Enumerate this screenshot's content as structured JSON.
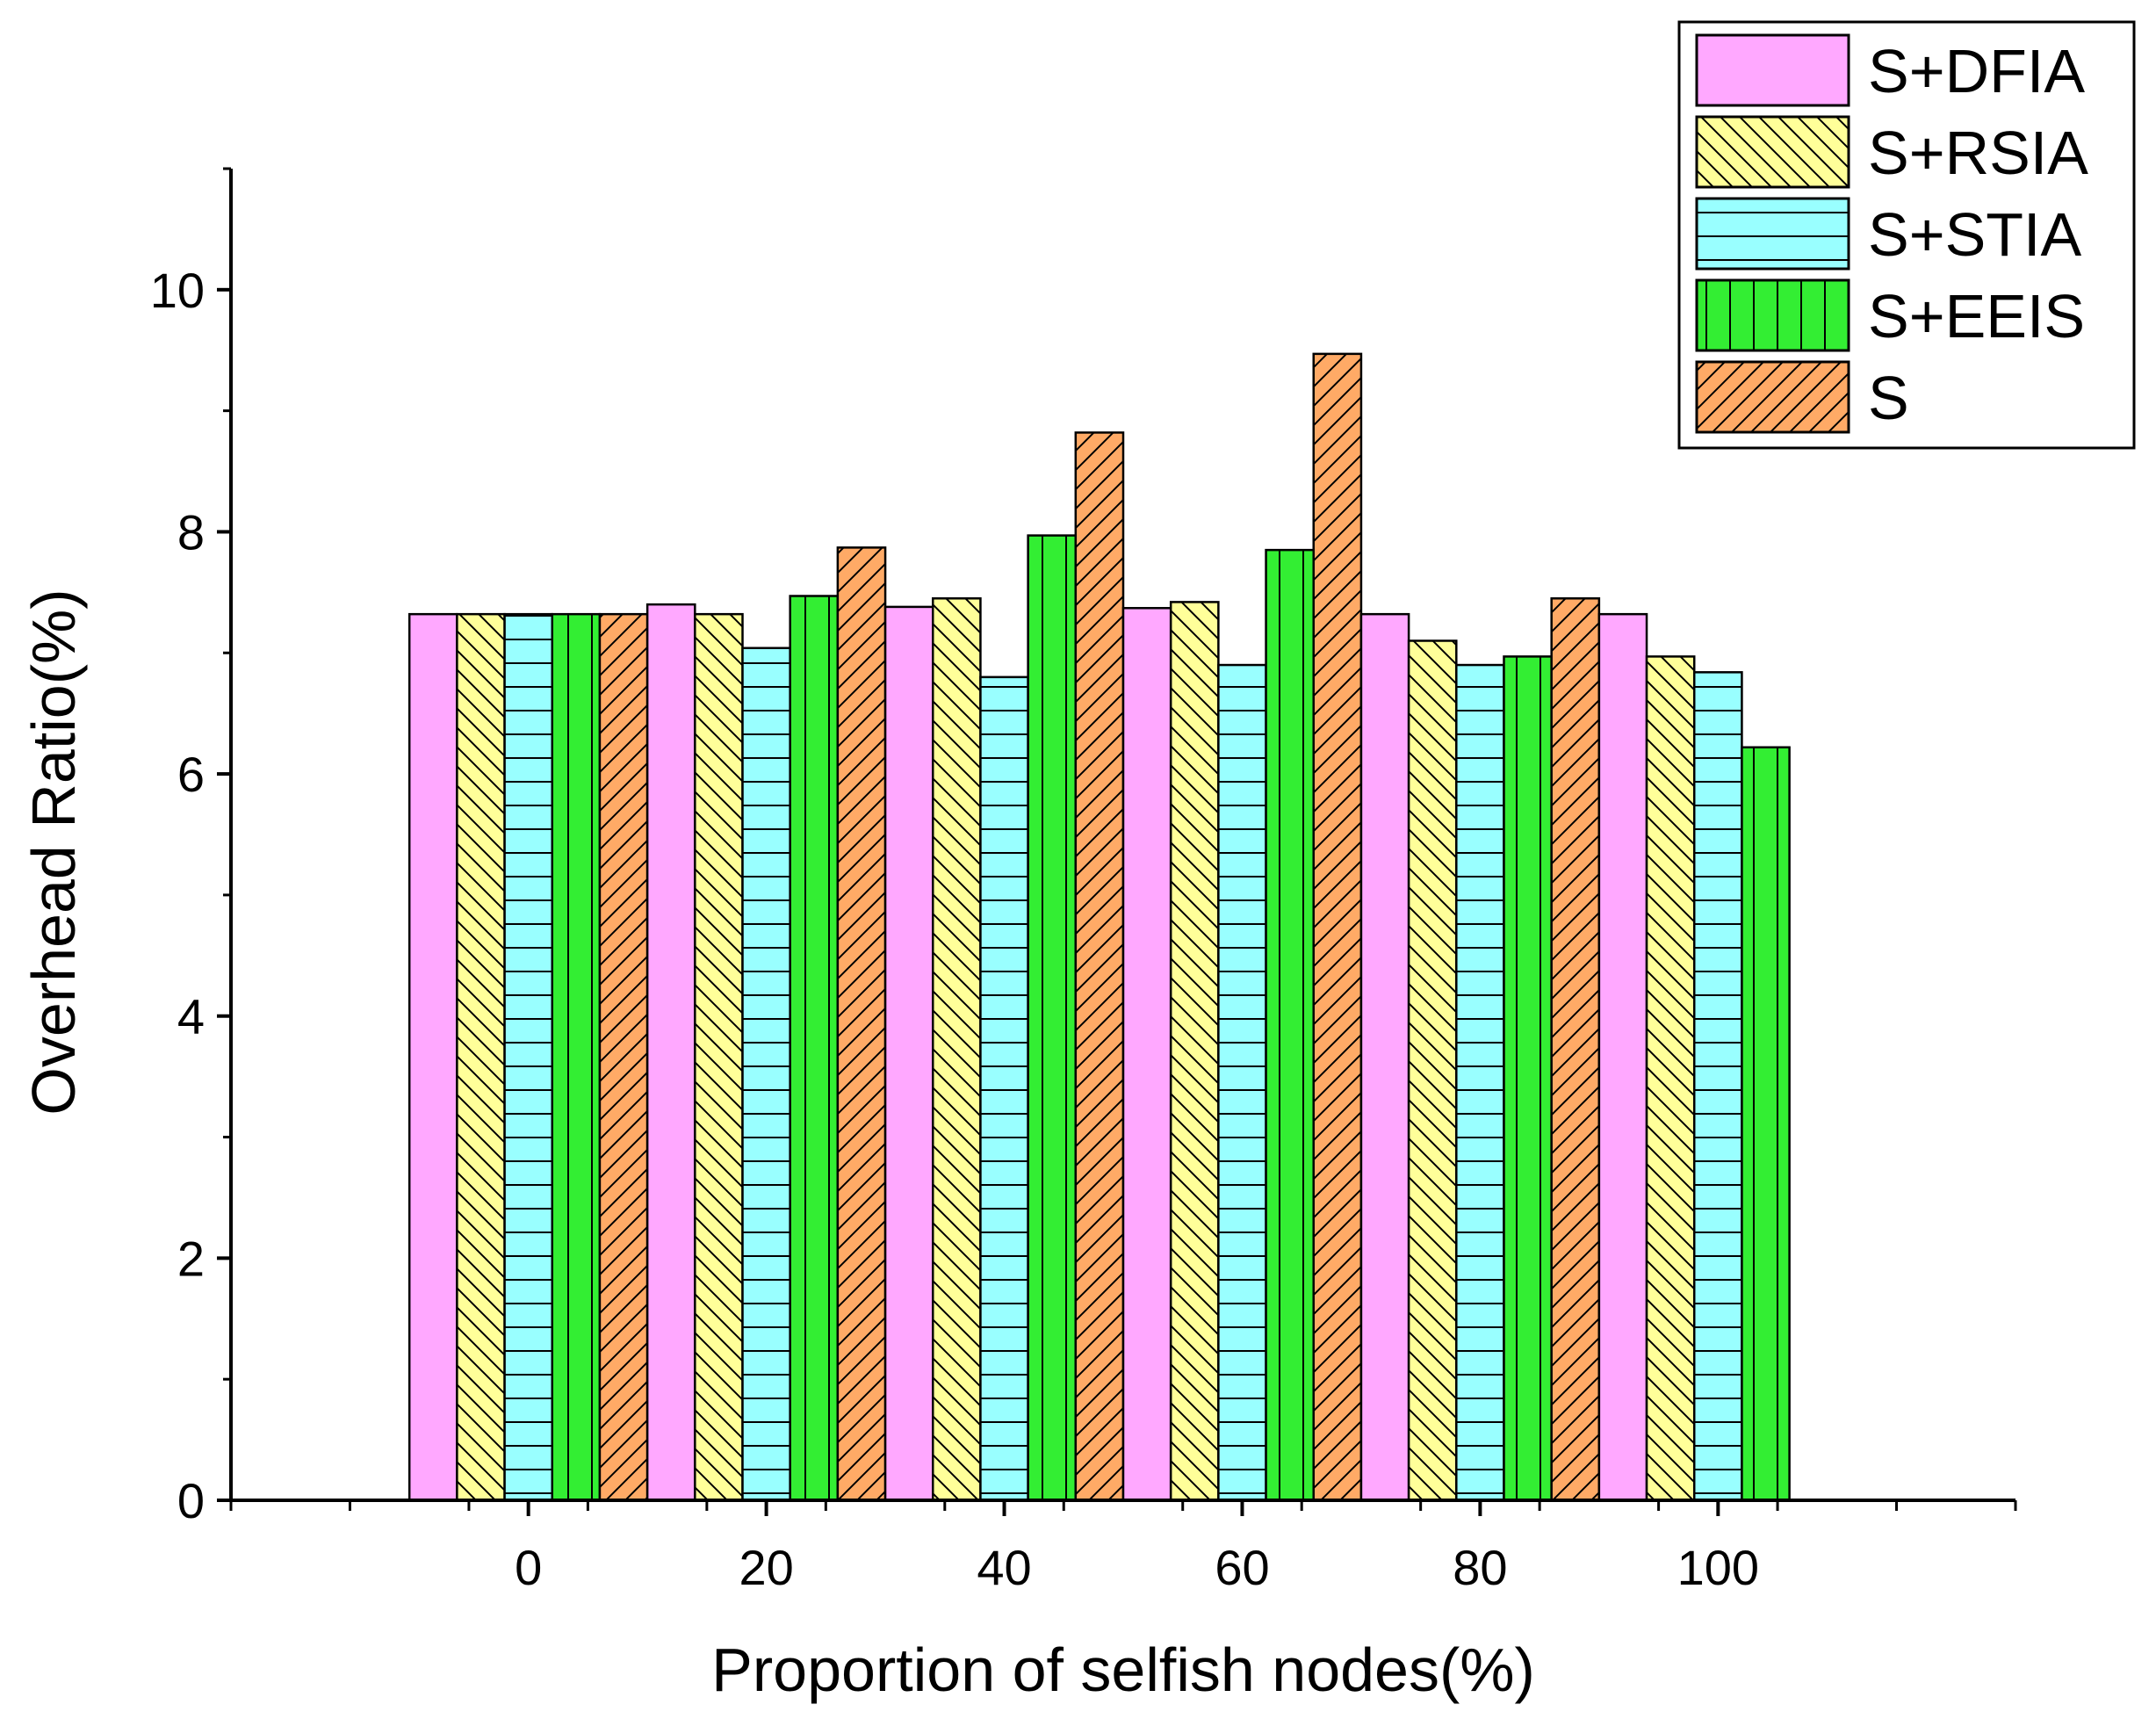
{
  "chart_data": {
    "type": "bar",
    "title": "",
    "xlabel": "Proportion of selfish nodes(%)",
    "ylabel": "Overhead Ratio(%)",
    "ylim": [
      0,
      11
    ],
    "xlim": [
      -25,
      125
    ],
    "yticks": [
      "0",
      "2",
      "4",
      "6",
      "8",
      "10"
    ],
    "categories": [
      "0",
      "20",
      "40",
      "60",
      "80",
      "100"
    ],
    "grid": false,
    "legend_position": "top-right",
    "series": [
      {
        "name": "S+DFIA",
        "values": [
          7.32,
          7.4,
          7.38,
          7.37,
          7.32,
          7.32
        ],
        "color": "#ffa8ff",
        "pattern": "none"
      },
      {
        "name": "S+RSIA",
        "values": [
          7.32,
          7.32,
          7.45,
          7.42,
          7.1,
          6.97
        ],
        "color": "#ffff99",
        "pattern": "backslash"
      },
      {
        "name": "S+STIA",
        "values": [
          7.32,
          7.04,
          6.8,
          6.9,
          6.9,
          6.84
        ],
        "color": "#99ffff",
        "pattern": "horizontal"
      },
      {
        "name": "S+EEIS",
        "values": [
          7.32,
          7.47,
          7.97,
          7.85,
          6.97,
          6.22
        ],
        "color": "#33ee33",
        "pattern": "vertical"
      },
      {
        "name": "S",
        "values": [
          7.32,
          7.87,
          8.82,
          9.47,
          7.45,
          null
        ],
        "color": "#ffaa66",
        "pattern": "slash"
      }
    ]
  }
}
